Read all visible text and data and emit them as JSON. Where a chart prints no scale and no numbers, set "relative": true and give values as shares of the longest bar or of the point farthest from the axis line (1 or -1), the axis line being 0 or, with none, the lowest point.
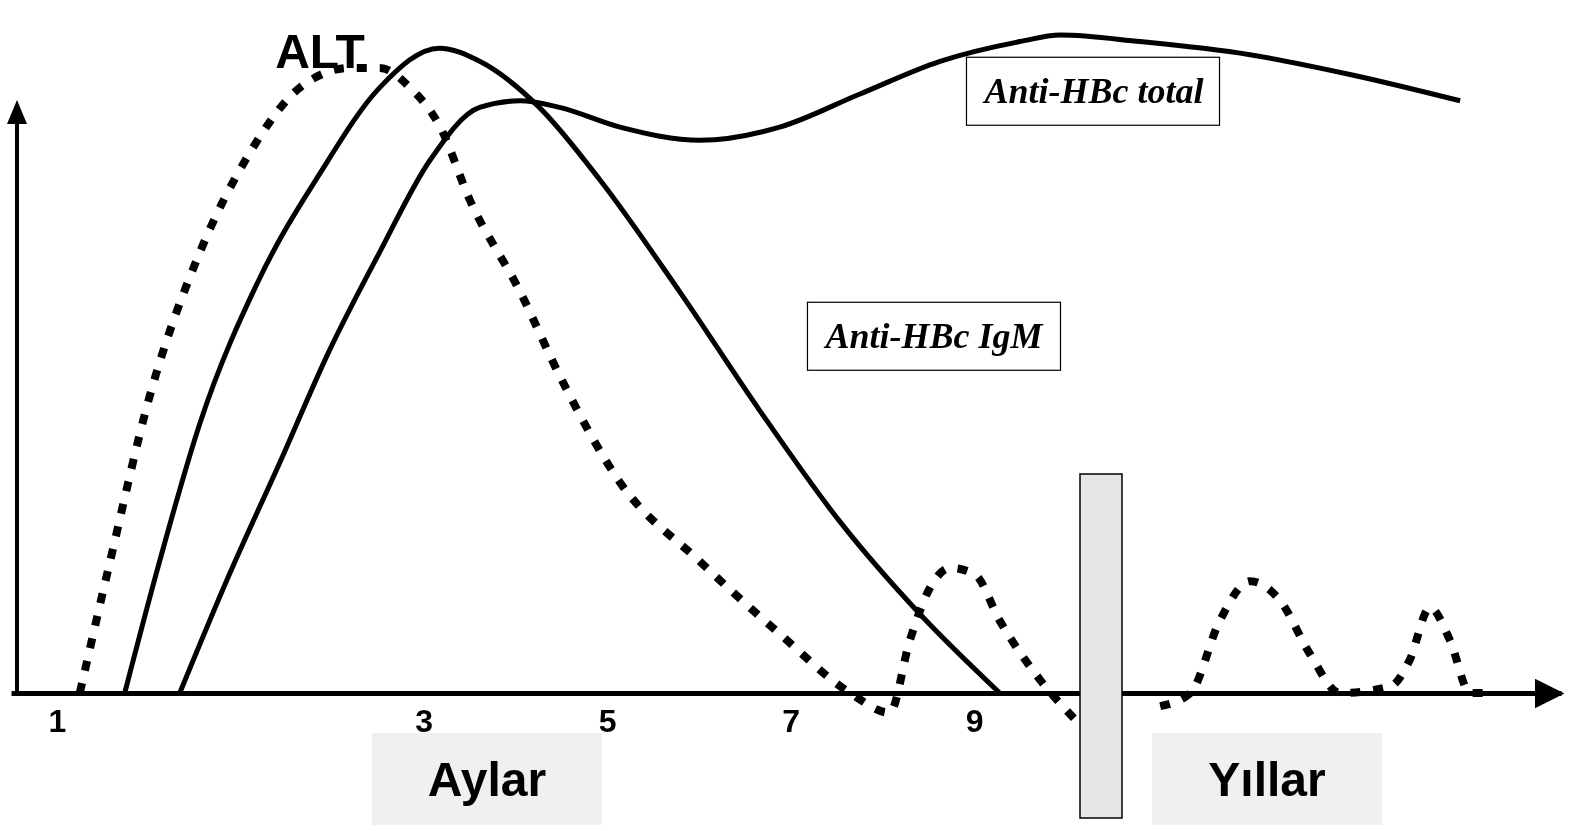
{
  "chart_data": {
    "type": "line",
    "relative": true,
    "legend": false,
    "marker": "none",
    "xlim": [
      -1.5,
      15.4
    ],
    "xticks": [
      {
        "value": -1,
        "label": "1"
      },
      3,
      5,
      7,
      9
    ],
    "annotations": [
      "Aylar",
      "Yıllar"
    ],
    "series": [
      {
        "name": "ALT",
        "color": "#000000",
        "line_style": "dotted",
        "x": [
          -0.75,
          -0.42,
          0.01,
          0.56,
          1.1,
          1.65,
          2.2,
          2.52,
          2.85,
          3.18,
          3.5,
          4.05,
          4.49,
          5.14,
          6.01,
          6.88,
          7.65,
          8.08,
          8.3,
          8.52,
          8.74,
          9.01,
          9.28,
          9.72,
          10.1,
          10.48,
          11.03,
          11.36,
          11.68,
          12.01,
          12.34,
          12.66,
          12.99,
          13.54,
          13.75,
          13.97,
          14.19,
          14.41,
          14.63
        ],
        "values": [
          0,
          0.2,
          0.45,
          0.67,
          0.82,
          0.92,
          0.95,
          0.95,
          0.92,
          0.86,
          0.75,
          0.61,
          0.48,
          0.32,
          0.2,
          0.09,
          0,
          -0.03,
          0.08,
          0.16,
          0.19,
          0.18,
          0.11,
          0.02,
          -0.04,
          null,
          -0.02,
          0,
          0.11,
          0.17,
          0.14,
          0.06,
          0,
          0.01,
          0.05,
          0.13,
          0.08,
          0,
          0
        ]
      },
      {
        "name": "Anti-HBc IgM",
        "color": "#000000",
        "line_style": "solid",
        "x": [
          -0.26,
          0.12,
          0.56,
          1.21,
          1.87,
          2.52,
          3.17,
          3.61,
          4.26,
          4.92,
          5.79,
          6.66,
          7.54,
          8.41,
          9.28
        ],
        "values": [
          0,
          0.2,
          0.41,
          0.63,
          0.79,
          0.92,
          0.98,
          0.96,
          0.89,
          0.78,
          0.61,
          0.43,
          0.26,
          0.12,
          0
        ]
      },
      {
        "name": "Anti-HBc total",
        "color": "#000000",
        "line_style": "solid",
        "x": [
          0.34,
          0.88,
          1.43,
          1.97,
          2.52,
          3.07,
          3.61,
          4.05,
          4.48,
          5.14,
          6.01,
          6.88,
          7.75,
          8.63,
          9.5,
          9.94,
          10.81,
          12.01,
          13.1,
          14.3
        ],
        "values": [
          0,
          0.18,
          0.35,
          0.52,
          0.67,
          0.81,
          0.89,
          0.9,
          0.89,
          0.86,
          0.84,
          0.86,
          0.91,
          0.96,
          0.99,
          1.0,
          0.99,
          0.97,
          0.94,
          0.9
        ]
      }
    ]
  }
}
